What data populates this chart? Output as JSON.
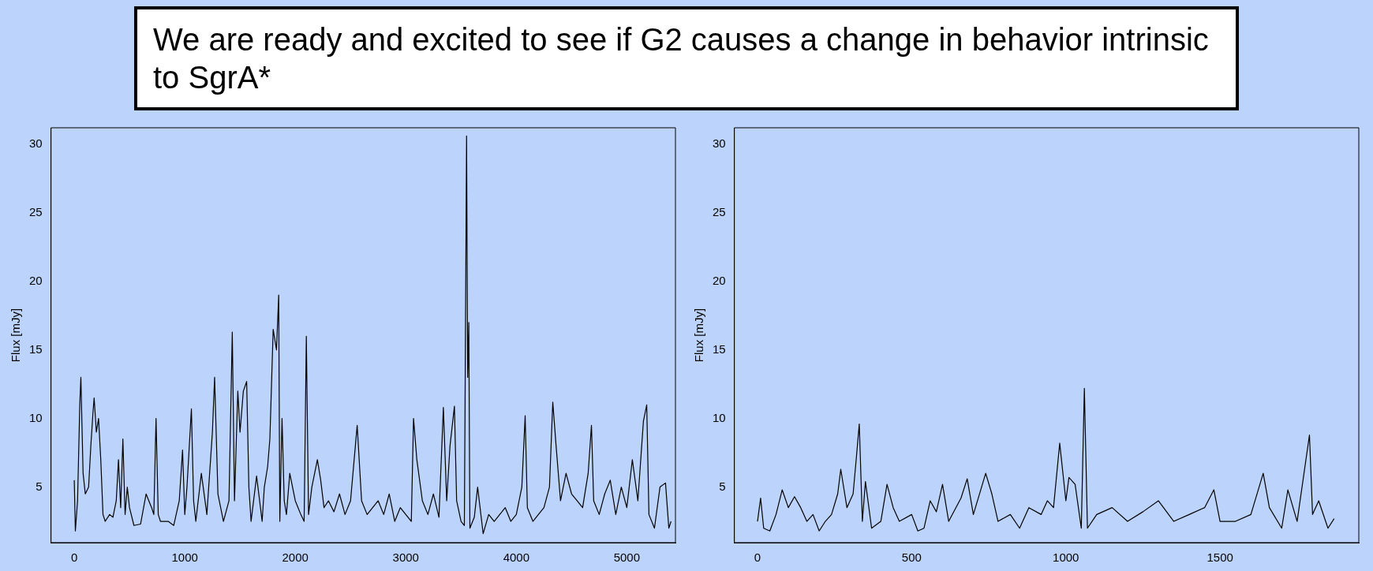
{
  "chart_data": [
    {
      "type": "line",
      "ylabel": "Flux [mJy]",
      "color": "#000000",
      "marker": "none",
      "annotations": [
        "We are ready and excited to see if G2 causes a change in behavior intrinsic to SgrA*"
      ],
      "xlim": [
        -210,
        5440
      ],
      "ylim": [
        0.95,
        31.2
      ],
      "xticks": [
        0,
        1000,
        2000,
        3000,
        4000,
        5000
      ],
      "yticks": [
        5,
        10,
        15,
        20,
        25,
        30
      ],
      "x": [
        0,
        10,
        30,
        50,
        60,
        80,
        100,
        130,
        150,
        170,
        180,
        200,
        220,
        240,
        260,
        280,
        320,
        350,
        380,
        400,
        420,
        440,
        460,
        480,
        500,
        540,
        600,
        650,
        700,
        720,
        740,
        760,
        780,
        850,
        900,
        950,
        980,
        1000,
        1020,
        1060,
        1080,
        1100,
        1150,
        1200,
        1250,
        1270,
        1300,
        1350,
        1400,
        1430,
        1450,
        1480,
        1500,
        1530,
        1560,
        1580,
        1600,
        1650,
        1700,
        1720,
        1750,
        1770,
        1800,
        1830,
        1850,
        1860,
        1880,
        1900,
        1920,
        1950,
        2000,
        2050,
        2080,
        2100,
        2120,
        2150,
        2200,
        2230,
        2260,
        2300,
        2350,
        2400,
        2450,
        2500,
        2560,
        2600,
        2650,
        2700,
        2750,
        2800,
        2850,
        2900,
        2950,
        3000,
        3050,
        3070,
        3100,
        3150,
        3200,
        3250,
        3300,
        3340,
        3370,
        3400,
        3440,
        3460,
        3500,
        3530,
        3550,
        3560,
        3570,
        3580,
        3620,
        3650,
        3700,
        3750,
        3800,
        3900,
        3950,
        4000,
        4050,
        4080,
        4100,
        4150,
        4200,
        4250,
        4300,
        4330,
        4360,
        4400,
        4450,
        4500,
        4550,
        4600,
        4650,
        4680,
        4700,
        4750,
        4800,
        4850,
        4900,
        4950,
        5000,
        5050,
        5100,
        5150,
        5180,
        5200,
        5250,
        5300,
        5350,
        5380,
        5400
      ],
      "values": [
        5.5,
        1.8,
        4,
        11,
        13,
        6,
        4.5,
        5,
        8,
        10.5,
        11.5,
        9,
        10,
        7,
        3,
        2.5,
        3,
        2.8,
        4,
        7,
        3.5,
        8.5,
        3,
        5,
        3.5,
        2.2,
        2.3,
        4.5,
        3.5,
        3,
        10,
        3,
        2.5,
        2.5,
        2.2,
        4,
        7.7,
        3,
        5,
        10.7,
        4,
        2.5,
        6,
        3,
        9,
        13,
        4.5,
        2.5,
        4,
        16.3,
        4,
        12,
        9,
        12,
        12.7,
        5,
        2.5,
        5.8,
        2.5,
        5,
        6.5,
        8.5,
        16.5,
        15,
        19,
        2.5,
        10,
        4,
        3,
        6,
        4,
        3,
        2.5,
        16,
        3,
        5,
        7,
        5.5,
        3.5,
        4,
        3.2,
        4.5,
        3,
        4,
        9.5,
        4,
        3,
        3.5,
        4,
        3,
        4.5,
        2.5,
        3.5,
        3,
        2.5,
        10,
        7,
        4,
        3,
        4.5,
        2.8,
        10.8,
        4,
        8,
        10.9,
        4,
        2.5,
        2.2,
        30.6,
        13,
        17,
        2,
        2.8,
        5,
        1.6,
        3,
        2.5,
        3.5,
        2.5,
        3,
        5,
        10.2,
        3.5,
        2.5,
        3,
        3.5,
        5,
        11.2,
        8,
        4,
        6,
        4.5,
        4,
        3.5,
        6,
        9.5,
        4,
        3,
        4.5,
        5.5,
        3,
        5,
        3.5,
        7,
        4,
        9.8,
        11,
        3,
        2,
        5,
        5.3,
        2,
        2.5
      ]
    },
    {
      "type": "line",
      "ylabel": "Flux [mJy]",
      "color": "#000000",
      "marker": "none",
      "xlim": [
        -75,
        1950
      ],
      "ylim": [
        0.95,
        31.2
      ],
      "xticks": [
        0,
        500,
        1000,
        1500
      ],
      "yticks": [
        5,
        10,
        15,
        20,
        25,
        30
      ],
      "x": [
        0,
        10,
        20,
        40,
        60,
        80,
        100,
        120,
        140,
        160,
        180,
        200,
        220,
        240,
        260,
        270,
        290,
        310,
        320,
        330,
        340,
        350,
        370,
        400,
        420,
        440,
        460,
        500,
        520,
        540,
        560,
        580,
        600,
        620,
        660,
        680,
        700,
        740,
        760,
        780,
        820,
        850,
        880,
        920,
        940,
        960,
        980,
        1000,
        1010,
        1030,
        1050,
        1060,
        1070,
        1100,
        1150,
        1200,
        1250,
        1300,
        1350,
        1400,
        1450,
        1480,
        1500,
        1550,
        1600,
        1640,
        1660,
        1700,
        1720,
        1750,
        1790,
        1800,
        1820,
        1850,
        1870
      ],
      "values": [
        2.5,
        4.2,
        2,
        1.8,
        3,
        4.8,
        3.5,
        4.3,
        3.5,
        2.5,
        3,
        1.8,
        2.5,
        3,
        4.5,
        6.3,
        3.5,
        4.5,
        7,
        9.6,
        2.5,
        5.4,
        2,
        2.5,
        5.2,
        3.5,
        2.5,
        3,
        1.8,
        2,
        4,
        3.2,
        5.2,
        2.5,
        4.2,
        5.6,
        3,
        6,
        4.5,
        2.5,
        3,
        2,
        3.5,
        3,
        4,
        3.5,
        8.2,
        4,
        5.7,
        5.2,
        2,
        12.2,
        2,
        3,
        3.5,
        2.5,
        3.2,
        4,
        2.5,
        3,
        3.5,
        4.8,
        2.5,
        2.5,
        3,
        6,
        3.5,
        2,
        4.8,
        2.5,
        8.8,
        3,
        4,
        2,
        2.7
      ]
    }
  ]
}
